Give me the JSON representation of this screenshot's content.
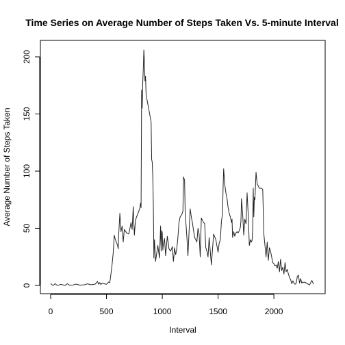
{
  "chart_data": {
    "type": "line",
    "title": "Time Series on Average Number of Steps Taken Vs. 5-minute Interval",
    "xlabel": "Interval",
    "ylabel": "Average Number of Steps Taken",
    "xlim": [
      0,
      2355
    ],
    "ylim": [
      0,
      206
    ],
    "xticks": [
      0,
      500,
      1000,
      1500,
      2000
    ],
    "yticks": [
      0,
      50,
      100,
      150,
      200
    ],
    "xtick_labels": [
      "0",
      "500",
      "1000",
      "1500",
      "2000"
    ],
    "ytick_labels": [
      "0",
      "50",
      "100",
      "150",
      "200"
    ],
    "grid": false,
    "series": [
      {
        "x": [
          0,
          15,
          25,
          40,
          55,
          70,
          90,
          110,
          130,
          150,
          170,
          200,
          230,
          260,
          300,
          330,
          360,
          400,
          420,
          430,
          440,
          450,
          460,
          480,
          500,
          520,
          530,
          540,
          550,
          560,
          570,
          580,
          600,
          605,
          610,
          620,
          630,
          640,
          650,
          660,
          680,
          700,
          720,
          730,
          740,
          750,
          760,
          770,
          790,
          800,
          805,
          810,
          815,
          820,
          825,
          830,
          835,
          840,
          845,
          850,
          855,
          900,
          905,
          910,
          915,
          920,
          925,
          930,
          940,
          960,
          975,
          985,
          990,
          995,
          1000,
          1005,
          1010,
          1020,
          1030,
          1045,
          1055,
          1060,
          1075,
          1090,
          1100,
          1110,
          1120,
          1130,
          1140,
          1150,
          1160,
          1175,
          1185,
          1190,
          1200,
          1205,
          1210,
          1220,
          1230,
          1240,
          1250,
          1260,
          1270,
          1280,
          1290,
          1300,
          1310,
          1320,
          1330,
          1340,
          1350,
          1360,
          1370,
          1380,
          1390,
          1400,
          1410,
          1420,
          1440,
          1460,
          1480,
          1500,
          1510,
          1520,
          1530,
          1540,
          1545,
          1550,
          1560,
          1570,
          1580,
          1590,
          1600,
          1610,
          1620,
          1625,
          1630,
          1640,
          1650,
          1660,
          1670,
          1680,
          1690,
          1700,
          1705,
          1710,
          1720,
          1730,
          1740,
          1750,
          1760,
          1770,
          1780,
          1790,
          1800,
          1805,
          1810,
          1815,
          1820,
          1825,
          1830,
          1840,
          1850,
          1870,
          1880,
          1890,
          1900,
          1910,
          1920,
          1930,
          1940,
          1950,
          1960,
          1970,
          1980,
          1990,
          2000,
          2010,
          2020,
          2030,
          2040,
          2050,
          2060,
          2070,
          2080,
          2090,
          2100,
          2110,
          2120,
          2130,
          2140,
          2150,
          2160,
          2170,
          2180,
          2190,
          2200,
          2210,
          2220,
          2230,
          2240,
          2250,
          2260,
          2270,
          2280,
          2290,
          2300,
          2310,
          2320,
          2330,
          2340,
          2355
        ],
        "y": [
          1.7,
          0.3,
          0.1,
          1.6,
          0.3,
          0.2,
          1.0,
          0.5,
          0.1,
          1.5,
          0.2,
          0.4,
          1.2,
          0.3,
          0.5,
          1.4,
          0.6,
          1.2,
          3.5,
          1.0,
          2.5,
          0.8,
          2.0,
          1.5,
          1.0,
          3.0,
          2.5,
          10.0,
          18.0,
          28.0,
          44.0,
          40.0,
          35.0,
          32.0,
          45.0,
          63.0,
          47.0,
          52.0,
          38.0,
          49.0,
          46.0,
          45.0,
          55.0,
          49.0,
          69.0,
          44.0,
          57.0,
          60.0,
          65.0,
          68.0,
          72.0,
          68.0,
          171.0,
          155.0,
          177.0,
          190.0,
          206.0,
          195.0,
          179.0,
          183.0,
          167.0,
          143.0,
          110.0,
          108.0,
          95.0,
          70.0,
          24.0,
          40.0,
          21.0,
          35.0,
          24.0,
          52.0,
          30.0,
          48.0,
          46.0,
          31.0,
          36.0,
          41.0,
          26.0,
          43.0,
          36.0,
          32.0,
          30.0,
          34.0,
          21.0,
          33.0,
          27.0,
          32.0,
          42.0,
          55.0,
          60.0,
          62.0,
          65.0,
          95.0,
          92.0,
          65.0,
          57.0,
          43.0,
          26.0,
          47.0,
          67.0,
          60.0,
          55.0,
          48.0,
          42.0,
          40.0,
          38.0,
          50.0,
          45.0,
          25.0,
          59.0,
          57.0,
          55.0,
          54.0,
          33.0,
          30.0,
          25.0,
          42.0,
          18.0,
          45.0,
          40.0,
          29.0,
          37.0,
          40.0,
          56.0,
          63.0,
          86.0,
          102.0,
          88.0,
          81.0,
          76.0,
          68.0,
          63.0,
          60.0,
          55.0,
          58.0,
          42.0,
          47.0,
          43.0,
          46.0,
          47.0,
          46.0,
          48.0,
          51.0,
          57.0,
          76.0,
          63.0,
          44.0,
          58.0,
          54.0,
          81.0,
          62.0,
          35.0,
          40.0,
          38.0,
          40.0,
          48.0,
          85.0,
          60.0,
          77.0,
          75.0,
          99.0,
          89.0,
          85.0,
          85.0,
          85.0,
          84.0,
          45.0,
          35.0,
          25.0,
          38.0,
          22.0,
          33.0,
          30.0,
          25.0,
          20.0,
          19.0,
          17.0,
          18.0,
          15.0,
          21.0,
          12.0,
          23.0,
          13.0,
          16.0,
          10.0,
          20.0,
          12.0,
          14.0,
          10.0,
          7.0,
          5.0,
          1.6,
          4.0,
          2.0,
          1.0,
          2.0,
          8.0,
          9.0,
          2.0,
          6.0,
          2.0,
          3.0,
          2.5,
          3.0,
          2.0,
          1.5,
          1.0,
          0.5,
          2.5,
          4.4,
          1.1
        ]
      }
    ]
  }
}
